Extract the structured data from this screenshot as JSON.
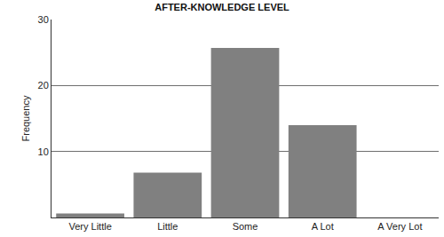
{
  "chart_data": {
    "type": "bar",
    "title": "AFTER-KNOWLEDGE LEVEL",
    "y_label": "Frequency",
    "categories": [
      "Very Little",
      "Little",
      "Some",
      "A Lot",
      "A Very Lot"
    ],
    "values": [
      0.6,
      6.8,
      25.7,
      14,
      0
    ],
    "color": "#808080",
    "ylim": [
      0,
      30
    ],
    "yticks": [
      10,
      20,
      30
    ],
    "grid": true
  }
}
